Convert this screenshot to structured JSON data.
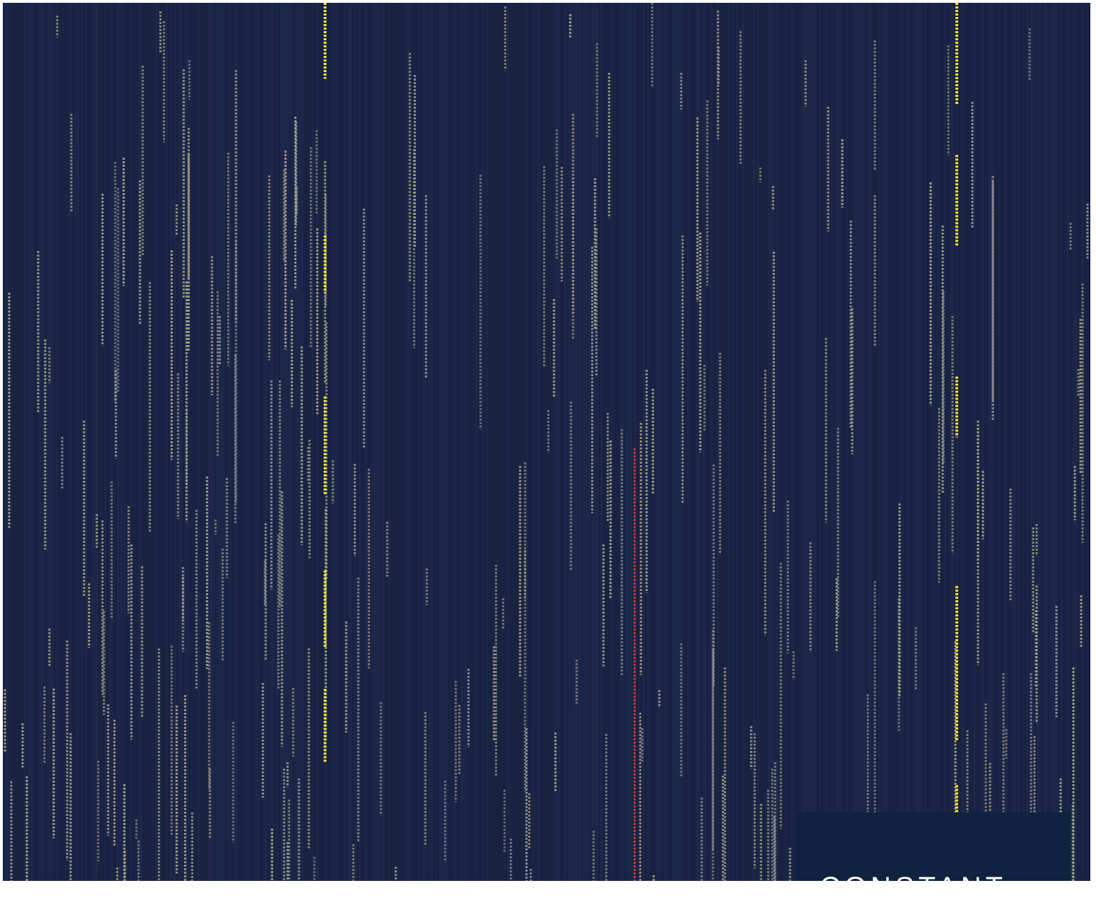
{
  "image": {
    "subject": "carpet-tile-texture",
    "colors": {
      "base": "#1a2546",
      "base_dark": "#121a33",
      "stripe_tan": "#b5a78c",
      "stripe_sage": "#a7ae8a",
      "stripe_grey": "#9a9aa2",
      "stripe_yellow": "#f1e03a",
      "stripe_red": "#d2362b",
      "label_bg": "#0f2240",
      "label_fg": "#ffffff"
    }
  },
  "label": {
    "text": "CONSTANT"
  }
}
